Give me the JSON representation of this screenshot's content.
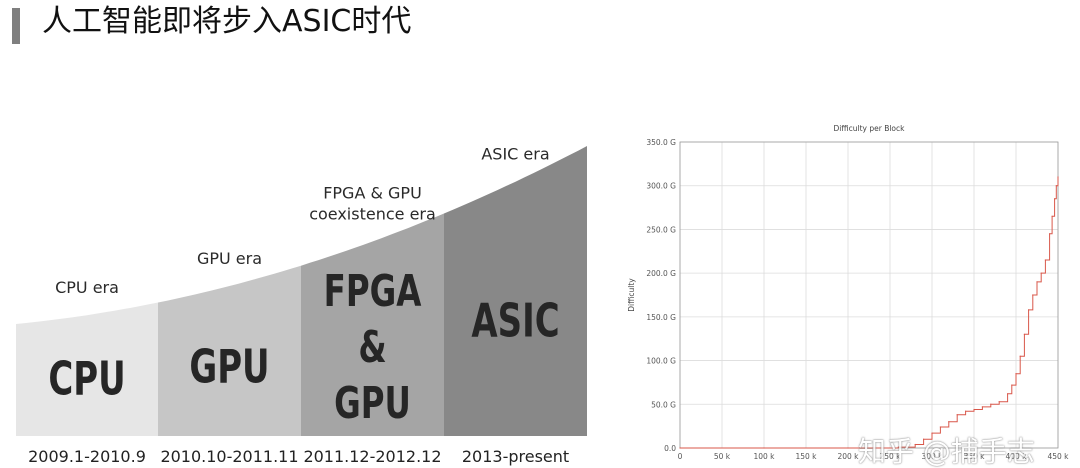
{
  "header": {
    "title": "人工智能即将步入ASIC时代"
  },
  "era_diagram": {
    "colors": [
      "#e6e6e6",
      "#c6c6c6",
      "#a5a5a5",
      "#888888"
    ],
    "text_color": "#2a2a2a",
    "segments": [
      {
        "era_label": "CPU era",
        "block_lines": [
          "CPU"
        ],
        "date_range": "2009.1-2010.9"
      },
      {
        "era_label": "GPU era",
        "block_lines": [
          "GPU"
        ],
        "date_range": "2010.10-2011.11"
      },
      {
        "era_label_lines": [
          "FPGA & GPU",
          "coexistence era"
        ],
        "block_lines": [
          "FPGA",
          "&",
          "GPU"
        ],
        "date_range": "2011.12-2012.12"
      },
      {
        "era_label": "ASIC era",
        "block_lines": [
          "ASIC"
        ],
        "date_range": "2013-present"
      }
    ]
  },
  "chart_data": {
    "type": "line",
    "title": "Difficulty per Block",
    "xlabel": "",
    "ylabel": "Difficulty",
    "xlim": [
      0,
      450000
    ],
    "ylim": [
      0,
      350
    ],
    "x_ticks": [
      "0",
      "50 k",
      "100 k",
      "150 k",
      "200 k",
      "250 k",
      "300 k",
      "350 k",
      "400 k",
      "450 k"
    ],
    "y_ticks": [
      "0.0",
      "50.0 G",
      "100.0 G",
      "150.0 G",
      "200.0 G",
      "250.0 G",
      "300.0 G",
      "350.0 G"
    ],
    "grid": true,
    "line_color": "#d9574a",
    "series": [
      {
        "x": [
          0,
          100000,
          200000,
          240000,
          260000,
          280000,
          290000,
          300000,
          310000,
          320000,
          330000,
          340000,
          350000,
          360000,
          370000,
          380000,
          390000,
          395000,
          400000,
          405000,
          410000,
          415000,
          420000,
          425000,
          430000,
          435000,
          440000,
          443000,
          446000,
          448000,
          450000
        ],
        "y": [
          0,
          0,
          0,
          0,
          1,
          4,
          10,
          17,
          24,
          30,
          38,
          42,
          44,
          47,
          50,
          53,
          62,
          72,
          85,
          105,
          130,
          158,
          175,
          190,
          200,
          215,
          245,
          265,
          285,
          300,
          310
        ]
      }
    ]
  },
  "watermark": {
    "text": "知乎 @捕手志"
  }
}
